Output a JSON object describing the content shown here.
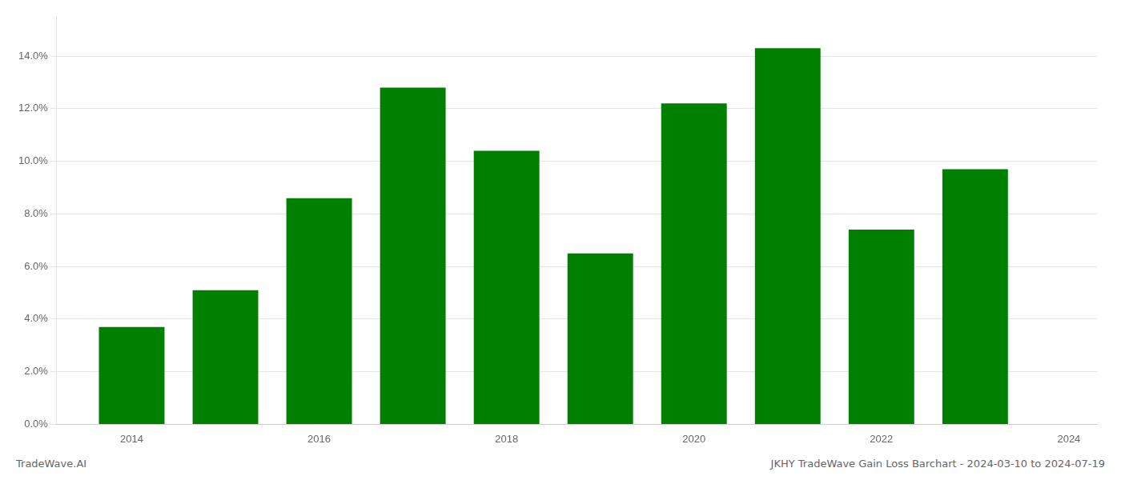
{
  "chart_data": {
    "type": "bar",
    "x": [
      2014,
      2015,
      2016,
      2017,
      2018,
      2019,
      2020,
      2021,
      2022,
      2023
    ],
    "values": [
      0.037,
      0.051,
      0.086,
      0.128,
      0.104,
      0.065,
      0.122,
      0.143,
      0.074,
      0.097
    ],
    "color": "#008000",
    "xlim": [
      2013.2,
      2024.3
    ],
    "xticks": [
      2014,
      2016,
      2018,
      2020,
      2022,
      2024
    ],
    "ylim": [
      0,
      0.155
    ],
    "yticks": [
      {
        "value": 0.0,
        "label": "0.0%"
      },
      {
        "value": 0.02,
        "label": "2.0%"
      },
      {
        "value": 0.04,
        "label": "4.0%"
      },
      {
        "value": 0.06,
        "label": "6.0%"
      },
      {
        "value": 0.08,
        "label": "8.0%"
      },
      {
        "value": 0.1,
        "label": "10.0%"
      },
      {
        "value": 0.12,
        "label": "12.0%"
      },
      {
        "value": 0.14,
        "label": "14.0%"
      }
    ],
    "grid": true,
    "annotations": [
      "TradeWave.AI",
      "JKHY TradeWave Gain Loss Barchart - 2024-03-10 to 2024-07-19"
    ]
  }
}
